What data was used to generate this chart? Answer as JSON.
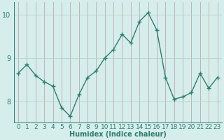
{
  "x": [
    0,
    1,
    2,
    3,
    4,
    5,
    6,
    7,
    8,
    9,
    10,
    11,
    12,
    13,
    14,
    15,
    16,
    17,
    18,
    19,
    20,
    21,
    22,
    23
  ],
  "y": [
    8.65,
    8.85,
    8.6,
    8.45,
    8.35,
    7.85,
    7.65,
    8.15,
    8.55,
    8.7,
    9.0,
    9.2,
    9.55,
    9.35,
    9.85,
    10.05,
    9.65,
    8.55,
    8.05,
    8.1,
    8.2,
    8.65,
    8.3,
    8.55
  ],
  "line_color": "#2e7d6e",
  "marker": "+",
  "marker_size": 3,
  "bg_color": "#d5eeec",
  "vgrid_color": "#c4a8a8",
  "hgrid_color": "#b8cfcd",
  "xlabel": "Humidex (Indice chaleur)",
  "ylim": [
    7.5,
    10.3
  ],
  "yticks": [
    8,
    9,
    10
  ],
  "xlabel_fontsize": 7,
  "tick_fontsize": 7,
  "linewidth": 1.0,
  "marker_size_plot": 4
}
